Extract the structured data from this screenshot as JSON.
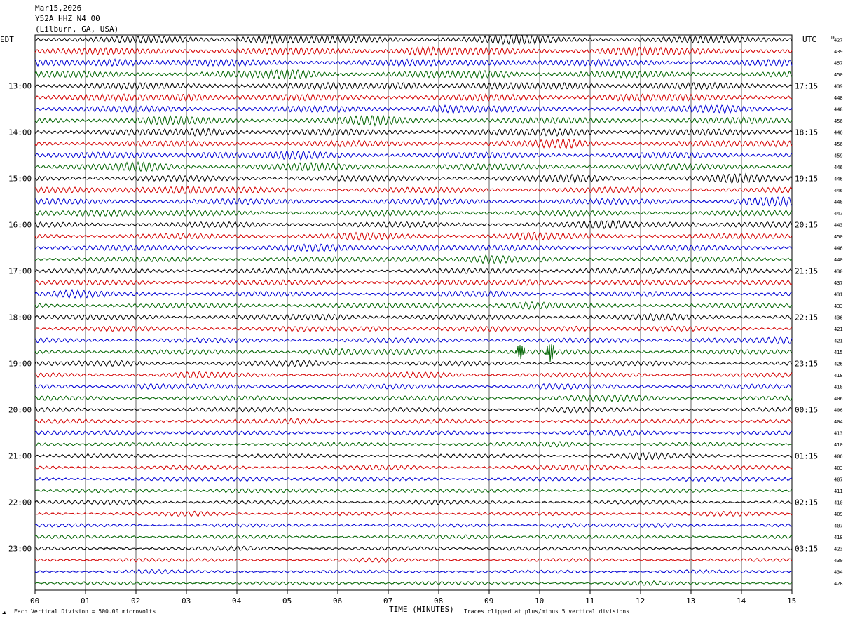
{
  "header": {
    "date": "Mar15,2026",
    "station": "Y52A HHZ N4 00",
    "location": "(Lilburn, GA, USA)"
  },
  "left_tz": "EDT",
  "right_tz": "UTC",
  "dc_label": "DC",
  "colors": [
    "#000000",
    "#d40000",
    "#0000d4",
    "#006400"
  ],
  "chart_data": {
    "type": "line",
    "xlabel": "TIME (MINUTES)",
    "x_ticks": [
      "00",
      "01",
      "02",
      "03",
      "04",
      "05",
      "06",
      "07",
      "08",
      "09",
      "10",
      "11",
      "12",
      "13",
      "14",
      "15"
    ],
    "xlim": [
      0,
      15
    ],
    "traces_per_hour": 4,
    "left_hour_labels": [
      "13:00",
      "14:00",
      "15:00",
      "16:00",
      "17:00",
      "18:00",
      "19:00",
      "20:00",
      "21:00",
      "22:00",
      "23:00"
    ],
    "right_hour_labels": [
      "17:15",
      "18:15",
      "19:15",
      "20:15",
      "21:15",
      "22:15",
      "23:15",
      "00:15",
      "01:15",
      "02:15",
      "03:15"
    ],
    "dc_offsets": [
      427,
      439,
      457,
      450,
      439,
      448,
      448,
      456,
      446,
      456,
      459,
      446,
      446,
      446,
      448,
      447,
      443,
      450,
      446,
      440,
      430,
      437,
      431,
      433,
      436,
      421,
      421,
      415,
      426,
      418,
      418,
      406,
      406,
      404,
      413,
      410,
      406,
      403,
      407,
      411,
      410,
      409,
      407,
      418,
      423,
      430,
      434,
      428
    ],
    "events": [
      {
        "trace": 27,
        "minute": 9.62,
        "amplitude": 2.2
      },
      {
        "trace": 27,
        "minute": 10.22,
        "amplitude": 2.8
      }
    ]
  },
  "footer": {
    "vertical_division": "Each Vertical Division =  500.00 microvolts",
    "clipping": "Traces clipped at plus/minus 5 vertical divisions"
  }
}
